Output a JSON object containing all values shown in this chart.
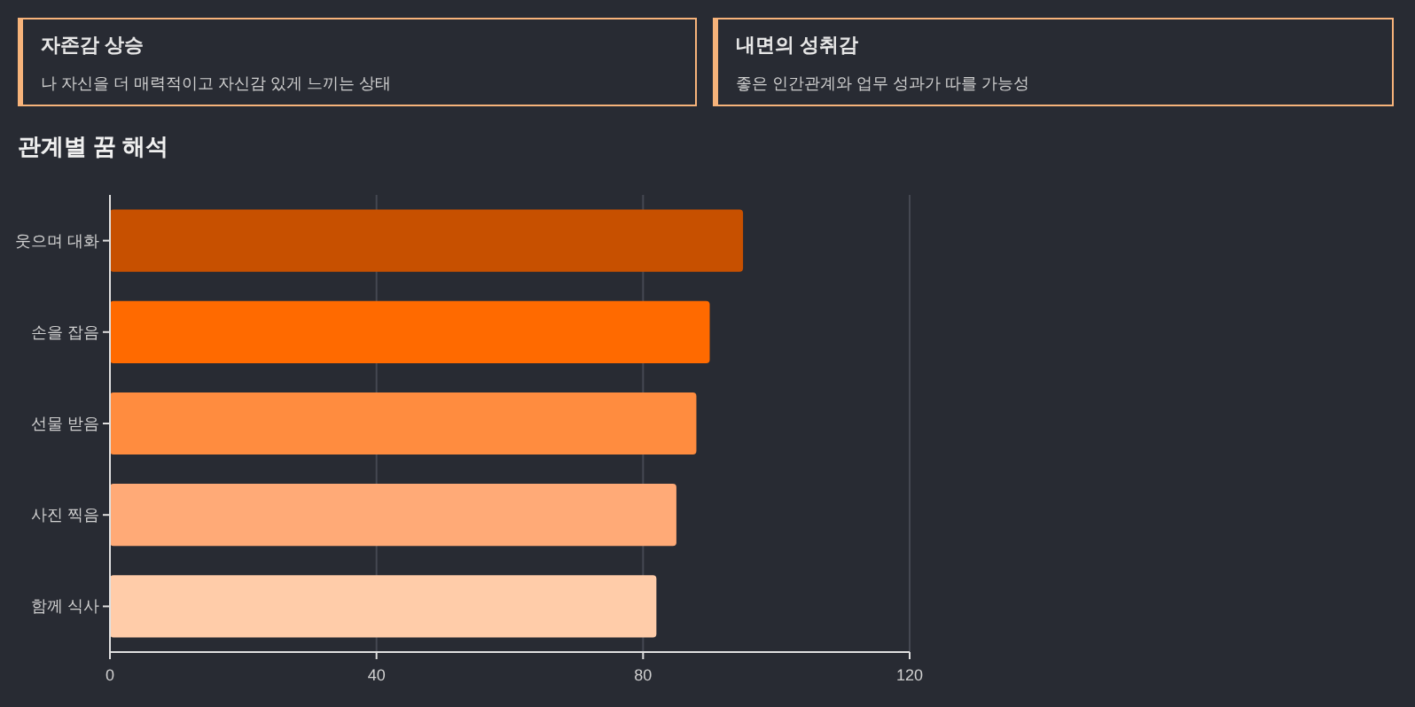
{
  "chart_data": [
    {
      "type": "other",
      "title": "자존감 상승",
      "subtitle": "나 자신을 더 매력적이고 자신감 있게 느끼는 상태"
    },
    {
      "type": "other",
      "title": "내면의 성취감",
      "subtitle": "좋은 인간관계와 업무 성과가 따를 가능성"
    },
    {
      "type": "bar",
      "title": "관계별 꿈 해석",
      "orientation": "horizontal",
      "categories": [
        "웃으며 대화",
        "손을 잡음",
        "선물 받음",
        "사진 찍음",
        "함께 식사"
      ],
      "values": [
        95,
        90,
        88,
        85,
        82
      ],
      "colors": [
        "#c75000",
        "#ff6a00",
        "#ff8c3f",
        "#ffaa77",
        "#ffcca9"
      ],
      "xlim": [
        0,
        120
      ],
      "xticks": [
        0,
        40,
        80,
        120
      ],
      "grid": "x"
    }
  ]
}
